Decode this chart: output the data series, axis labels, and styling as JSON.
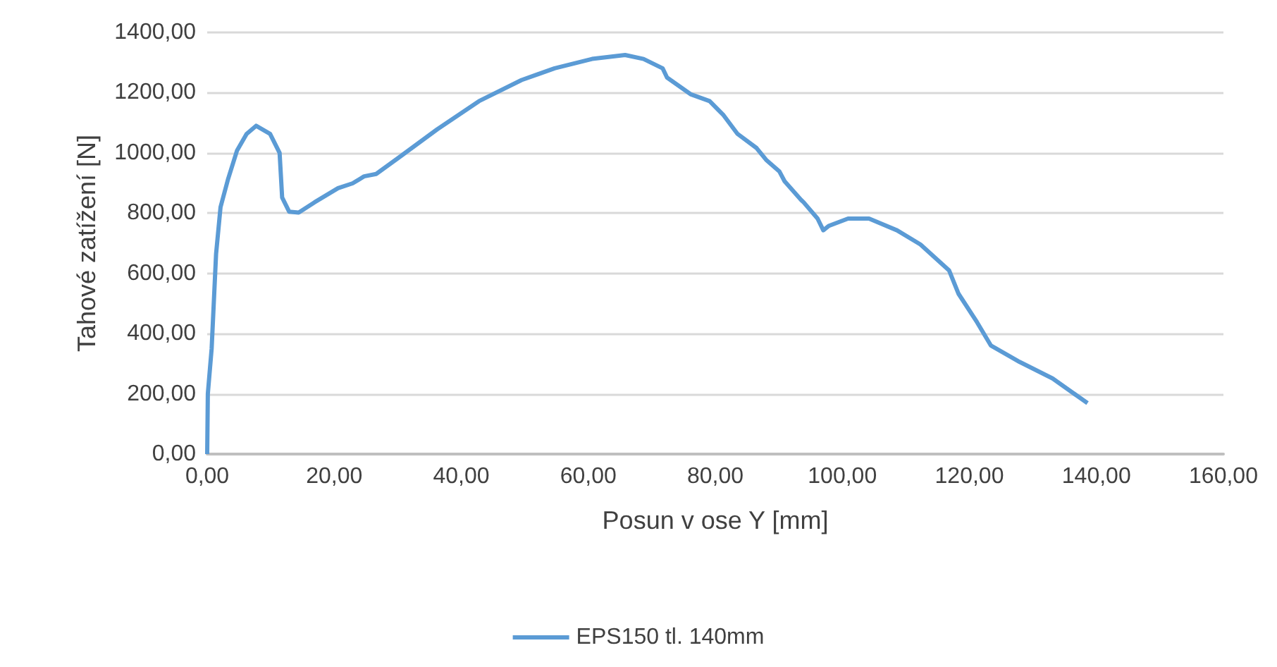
{
  "chart_data": {
    "type": "line",
    "xlabel": "Posun v ose Y [mm]",
    "ylabel": "Tahové zatížení [N]",
    "xlim": [
      0,
      160
    ],
    "xticks": [
      {
        "value": 0,
        "label": "0,00"
      },
      {
        "value": 20,
        "label": "20,00"
      },
      {
        "value": 40,
        "label": "40,00"
      },
      {
        "value": 60,
        "label": "60,00"
      },
      {
        "value": 80,
        "label": "80,00"
      },
      {
        "value": 100,
        "label": "100,00"
      },
      {
        "value": 120,
        "label": "120,00"
      },
      {
        "value": 140,
        "label": "140,00"
      },
      {
        "value": 160,
        "label": "160,00"
      }
    ],
    "ylim": [
      0,
      1400
    ],
    "yticks": [
      {
        "value": 0,
        "label": "0,00"
      },
      {
        "value": 200,
        "label": "200,00"
      },
      {
        "value": 400,
        "label": "400,00"
      },
      {
        "value": 600,
        "label": "600,00"
      },
      {
        "value": 800,
        "label": "800,00"
      },
      {
        "value": 1000,
        "label": "1000,00"
      },
      {
        "value": 1200,
        "label": "1200,00"
      },
      {
        "value": 1400,
        "label": "1400,00"
      }
    ],
    "grid": "y",
    "legend": "bottom",
    "marker": "none",
    "line_style": "solid",
    "series": [
      {
        "name": "EPS150 tl. 140mm",
        "color": "#5b9bd5",
        "x": [
          0,
          0.1,
          0.7,
          1.4,
          2.1,
          3.3,
          4.7,
          6.2,
          7.7,
          9.9,
          11.4,
          11.8,
          12.9,
          14.4,
          16.9,
          20.6,
          22.9,
          24.7,
          26.6,
          30.2,
          36.2,
          42.8,
          49.5,
          54.7,
          60.6,
          65.8,
          68.7,
          71.7,
          72.4,
          76.1,
          79.1,
          81.3,
          83.5,
          86.5,
          88.0,
          90.1,
          90.9,
          93.5,
          93.9,
          96.1,
          97.0,
          97.9,
          100.9,
          104.2,
          108.6,
          112.3,
          116.8,
          118.3,
          121.2,
          123.4,
          127.9,
          133.1,
          138.6
        ],
        "values": [
          0,
          200,
          350,
          665,
          820,
          914,
          1008,
          1063,
          1090,
          1063,
          1000,
          852,
          805,
          802,
          836,
          883,
          899,
          922,
          930,
          985,
          1078,
          1172,
          1242,
          1281,
          1312,
          1325,
          1312,
          1281,
          1250,
          1195,
          1172,
          1125,
          1063,
          1016,
          977,
          938,
          906,
          844,
          836,
          782,
          743,
          758,
          782,
          782,
          743,
          696,
          610,
          532,
          438,
          360,
          306,
          251,
          169
        ]
      }
    ]
  }
}
